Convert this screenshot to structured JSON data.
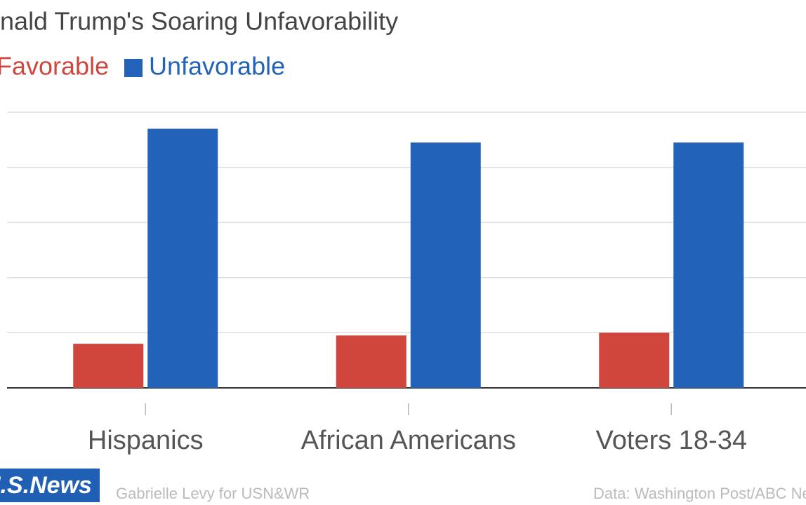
{
  "chart_data": {
    "type": "bar",
    "title": "Donald Trump's Soaring Unfavorability",
    "categories": [
      "Hispanics",
      "African Americans",
      "Voters 18-34"
    ],
    "series": [
      {
        "name": "Favorable",
        "color": "#d0453c",
        "values": [
          16,
          19,
          20
        ]
      },
      {
        "name": "Unfavorable",
        "color": "#2262b8",
        "values": [
          94,
          89,
          89
        ]
      }
    ],
    "ylim": [
      0,
      100
    ],
    "yticks": [
      0,
      20,
      40,
      60,
      80,
      100
    ],
    "grid": true,
    "credit": "Gabrielle Levy for USN&WR",
    "source": "Data: Washington Post/ABC News",
    "logo": "U.S.News"
  }
}
